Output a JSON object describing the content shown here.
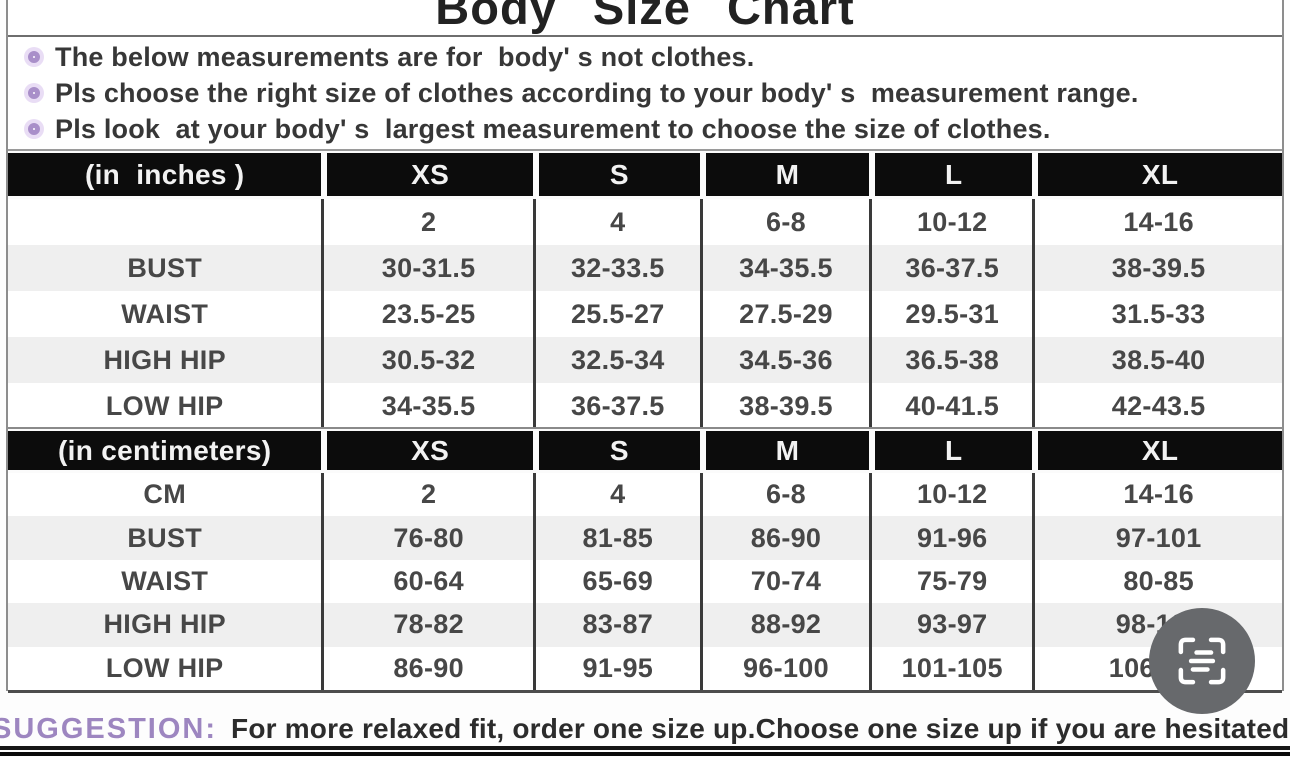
{
  "title": "Body Size Chart",
  "notes": [
    "The below measurements are for  body' s not clothes.",
    "Pls choose the right size of clothes according to your body' s  measurement range.",
    "Pls look  at your body' s  largest measurement to choose the size of clothes."
  ],
  "tables": [
    {
      "unit_label": "(in  inches )",
      "size_headers": [
        "XS",
        "S",
        "M",
        "L",
        "XL"
      ],
      "rows": [
        [
          "",
          "2",
          "4",
          "6-8",
          "10-12",
          "14-16"
        ],
        [
          "BUST",
          "30-31.5",
          "32-33.5",
          "34-35.5",
          "36-37.5",
          "38-39.5"
        ],
        [
          "WAIST",
          "23.5-25",
          "25.5-27",
          "27.5-29",
          "29.5-31",
          "31.5-33"
        ],
        [
          "HIGH HIP",
          "30.5-32",
          "32.5-34",
          "34.5-36",
          "36.5-38",
          "38.5-40"
        ],
        [
          "LOW HIP",
          "34-35.5",
          "36-37.5",
          "38-39.5",
          "40-41.5",
          "42-43.5"
        ]
      ]
    },
    {
      "unit_label": "(in centimeters)",
      "size_headers": [
        "XS",
        "S",
        "M",
        "L",
        "XL"
      ],
      "rows": [
        [
          "CM",
          "2",
          "4",
          "6-8",
          "10-12",
          "14-16"
        ],
        [
          "BUST",
          "76-80",
          "81-85",
          "86-90",
          "91-96",
          "97-101"
        ],
        [
          "WAIST",
          "60-64",
          "65-69",
          "70-74",
          "75-79",
          "80-85"
        ],
        [
          "HIGH HIP",
          "78-82",
          "83-87",
          "88-92",
          "93-97",
          "98-102"
        ],
        [
          "LOW HIP",
          "86-90",
          "91-95",
          "96-100",
          "101-105",
          "106-110"
        ]
      ]
    }
  ],
  "suggestion": {
    "label": "SUGGESTION:",
    "text": "For more relaxed fit, order one size up.Choose one size up if you are hesitated between two sizes"
  },
  "fab": {
    "icon": "extract-text-icon"
  },
  "colors": {
    "header_bg": "#0c0c0c",
    "stripe": "#efefef",
    "bullet_ring": "#a98fc9",
    "suggestion_label": "#9d86c0",
    "fab_bg": "#67696c"
  }
}
